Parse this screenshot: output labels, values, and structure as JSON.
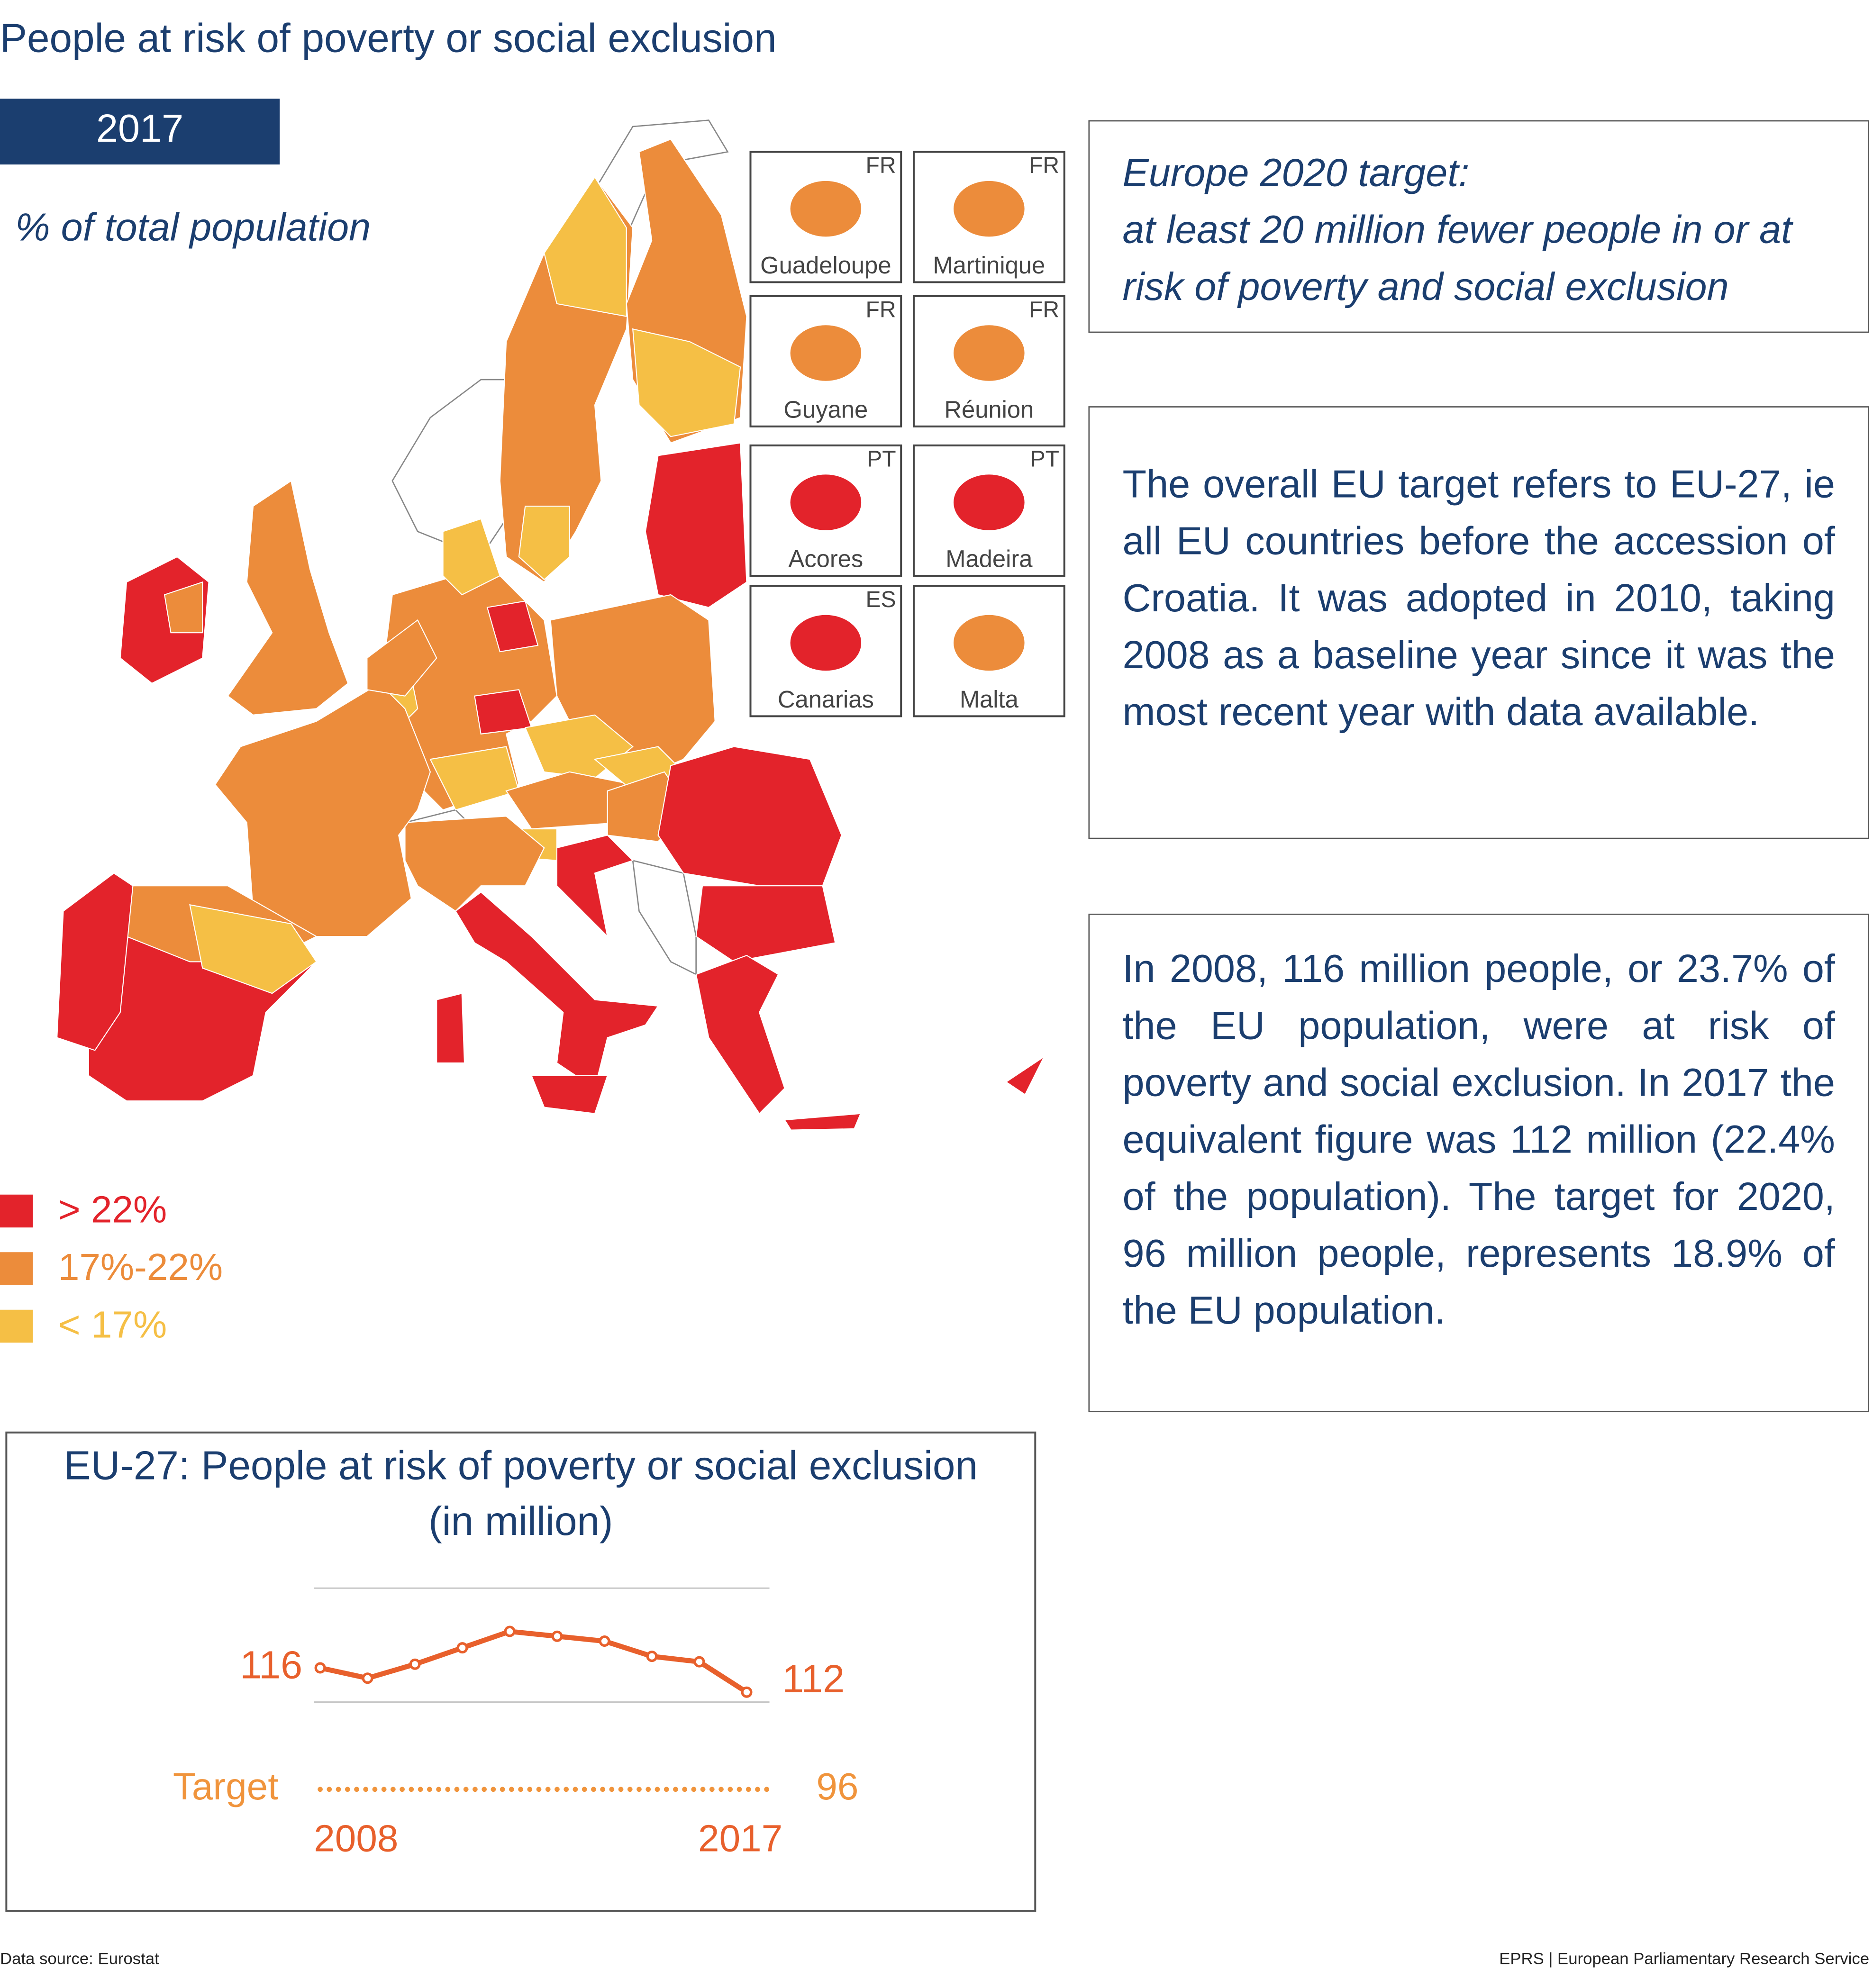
{
  "title": "People at risk of poverty or social exclusion",
  "map": {
    "year": "2017",
    "subtitle": "% of total population",
    "insets": [
      {
        "name": "Guadeloupe",
        "country": "FR"
      },
      {
        "name": "Martinique",
        "country": "FR"
      },
      {
        "name": "Guyane",
        "country": "FR"
      },
      {
        "name": "Réunion",
        "country": "FR"
      },
      {
        "name": "Acores",
        "country": "PT"
      },
      {
        "name": "Madeira",
        "country": "PT"
      },
      {
        "name": "Canarias",
        "country": "ES"
      },
      {
        "name": "Malta"
      }
    ],
    "legend": [
      {
        "label": "> 22%",
        "color": "#e3232b"
      },
      {
        "label": "17%-22%",
        "color": "#ec8c3b"
      },
      {
        "label": "< 17%",
        "color": "#f5bf45"
      }
    ]
  },
  "boxes": [
    {
      "title": "Europe 2020 target:",
      "text": "at least 20 million fewer people in or at risk of poverty and social exclusion"
    },
    {
      "text": "The overall EU target refers to EU-27, ie all EU countries before the accession of Croatia. It was adopted in 2010, taking 2008 as a baseline year since it was the most recent year with data available."
    },
    {
      "text": "In 2008, 116 million people, or 23.7% of the EU population, were at risk of poverty and social exclusion. In 2017 the equivalent figure was 112 million (22.4% of the population). The target for 2020, 96 million people, represents 18.9% of the EU population."
    }
  ],
  "chart_data": {
    "type": "line",
    "title": "EU-27: People at risk of poverty or social exclusion",
    "subtitle": "(in million)",
    "categories": [
      "2008",
      null,
      null,
      null,
      null,
      null,
      null,
      null,
      null,
      "2017"
    ],
    "values": [
      116,
      114.3,
      116.6,
      119.3,
      122,
      121.2,
      120.4,
      117.9,
      117,
      112
    ],
    "value_labels": [
      "116",
      null,
      null,
      null,
      null,
      null,
      null,
      null,
      null,
      "112"
    ],
    "color": "#e8602c",
    "target": {
      "label": "Target",
      "value": 96,
      "color": "#f0943c"
    },
    "ylim": [
      94,
      129
    ]
  },
  "footer": {
    "source": "Data source: Eurostat",
    "credit": "EPRS | European Parliamentary Research Service"
  }
}
